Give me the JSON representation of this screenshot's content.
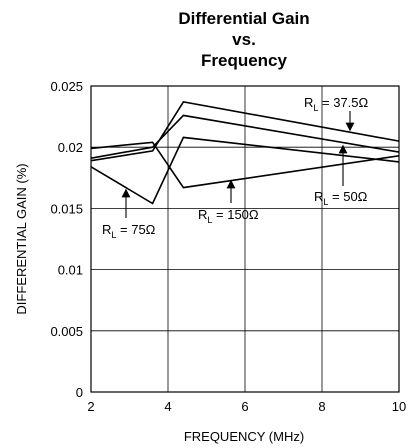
{
  "chart_data": {
    "type": "line",
    "title": [
      "Differential Gain",
      "vs.",
      "Frequency"
    ],
    "xlabel": "FREQUENCY (MHz)",
    "ylabel": "DIFFERENTIAL GAIN (%)",
    "xlim": [
      2,
      10
    ],
    "ylim": [
      0,
      0.025
    ],
    "x_ticks": [
      "2",
      "4",
      "6",
      "8",
      "10"
    ],
    "y_ticks": [
      "0",
      "0.005",
      "0.01",
      "0.015",
      "0.02",
      "0.025"
    ],
    "grid": true,
    "series": [
      {
        "name": "RL = 37.5Ω",
        "x": [
          2,
          3.6,
          4.4,
          10
        ],
        "y": [
          0.0189,
          0.0197,
          0.0237,
          0.0205
        ]
      },
      {
        "name": "RL = 50Ω",
        "x": [
          2,
          3.6,
          4.4,
          10
        ],
        "y": [
          0.0191,
          0.02,
          0.0226,
          0.0196
        ]
      },
      {
        "name": "RL = 150Ω",
        "x": [
          2,
          3.6,
          4.4,
          10
        ],
        "y": [
          0.0199,
          0.0204,
          0.0167,
          0.0193
        ]
      },
      {
        "name": "RL = 75Ω",
        "x": [
          2,
          3.6,
          4.4,
          10
        ],
        "y": [
          0.0184,
          0.0154,
          0.0208,
          0.0188
        ]
      }
    ],
    "annotations": [
      {
        "main": "R",
        "sub": "L",
        "rest": " = 37.5Ω"
      },
      {
        "main": "R",
        "sub": "L",
        "rest": " = 50Ω"
      },
      {
        "main": "R",
        "sub": "L",
        "rest": " = 150Ω"
      },
      {
        "main": "R",
        "sub": "L",
        "rest": " = 75Ω"
      }
    ]
  }
}
